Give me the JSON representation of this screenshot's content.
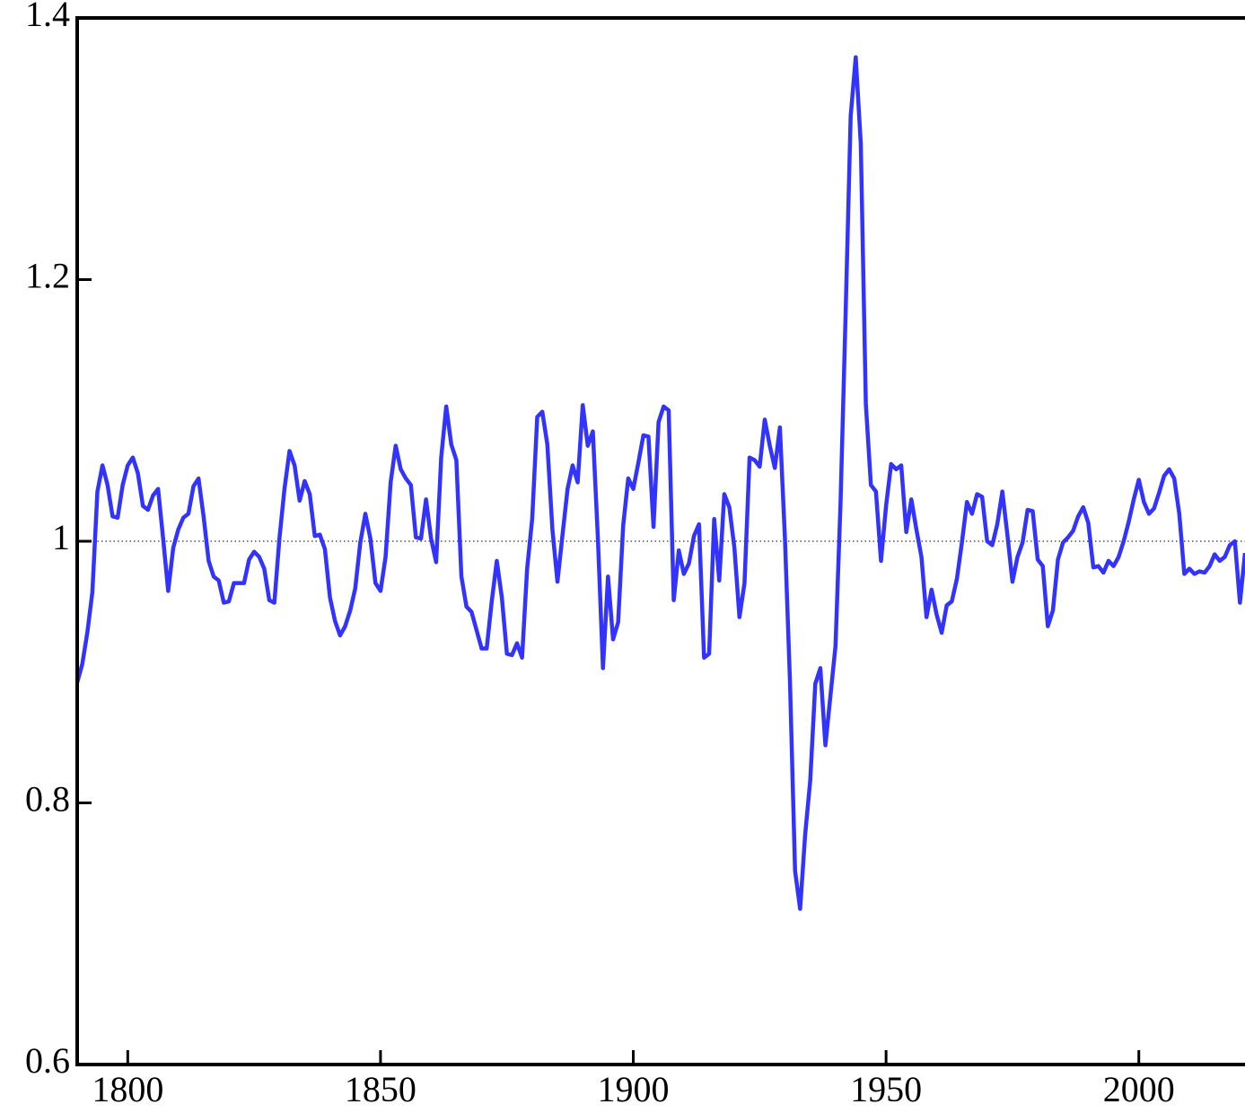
{
  "chart_data": {
    "type": "line",
    "x": [
      1790,
      1791,
      1792,
      1793,
      1794,
      1795,
      1796,
      1797,
      1798,
      1799,
      1800,
      1801,
      1802,
      1803,
      1804,
      1805,
      1806,
      1807,
      1808,
      1809,
      1810,
      1811,
      1812,
      1813,
      1814,
      1815,
      1816,
      1817,
      1818,
      1819,
      1820,
      1821,
      1822,
      1823,
      1824,
      1825,
      1826,
      1827,
      1828,
      1829,
      1830,
      1831,
      1832,
      1833,
      1834,
      1835,
      1836,
      1837,
      1838,
      1839,
      1840,
      1841,
      1842,
      1843,
      1844,
      1845,
      1846,
      1847,
      1848,
      1849,
      1850,
      1851,
      1852,
      1853,
      1854,
      1855,
      1856,
      1857,
      1858,
      1859,
      1860,
      1861,
      1862,
      1863,
      1864,
      1865,
      1866,
      1867,
      1868,
      1869,
      1870,
      1871,
      1872,
      1873,
      1874,
      1875,
      1876,
      1877,
      1878,
      1879,
      1880,
      1881,
      1882,
      1883,
      1884,
      1885,
      1886,
      1887,
      1888,
      1889,
      1890,
      1891,
      1892,
      1893,
      1894,
      1895,
      1896,
      1897,
      1898,
      1899,
      1900,
      1901,
      1902,
      1903,
      1904,
      1905,
      1906,
      1907,
      1908,
      1909,
      1910,
      1911,
      1912,
      1913,
      1914,
      1915,
      1916,
      1917,
      1918,
      1919,
      1920,
      1921,
      1922,
      1923,
      1924,
      1925,
      1926,
      1927,
      1928,
      1929,
      1930,
      1931,
      1932,
      1933,
      1934,
      1935,
      1936,
      1937,
      1938,
      1939,
      1940,
      1941,
      1942,
      1943,
      1944,
      1945,
      1946,
      1947,
      1948,
      1949,
      1950,
      1951,
      1952,
      1953,
      1954,
      1955,
      1956,
      1957,
      1958,
      1959,
      1960,
      1961,
      1962,
      1963,
      1964,
      1965,
      1966,
      1967,
      1968,
      1969,
      1970,
      1971,
      1972,
      1973,
      1974,
      1975,
      1976,
      1977,
      1978,
      1979,
      1980,
      1981,
      1982,
      1983,
      1984,
      1985,
      1986,
      1987,
      1988,
      1989,
      1990,
      1991,
      1992,
      1993,
      1994,
      1995,
      1996,
      1997,
      1998,
      1999,
      2000,
      2001,
      2002,
      2003,
      2004,
      2005,
      2006,
      2007,
      2008,
      2009,
      2010,
      2011,
      2012,
      2013,
      2014,
      2015,
      2016,
      2017,
      2018,
      2019,
      2020,
      2021
    ],
    "series": [
      {
        "color": "#3333ff",
        "values": [
          0.892,
          0.906,
          0.93,
          0.961,
          1.038,
          1.058,
          1.043,
          1.019,
          1.018,
          1.043,
          1.058,
          1.064,
          1.052,
          1.027,
          1.024,
          1.035,
          1.04,
          1.002,
          0.962,
          0.995,
          1.009,
          1.018,
          1.021,
          1.042,
          1.048,
          1.019,
          0.985,
          0.973,
          0.97,
          0.953,
          0.954,
          0.968,
          0.968,
          0.968,
          0.986,
          0.992,
          0.988,
          0.979,
          0.955,
          0.953,
          1.002,
          1.04,
          1.069,
          1.058,
          1.031,
          1.046,
          1.036,
          1.004,
          1.005,
          0.994,
          0.957,
          0.939,
          0.928,
          0.935,
          0.947,
          0.964,
          0.999,
          1.021,
          1.002,
          0.968,
          0.962,
          0.988,
          1.045,
          1.073,
          1.055,
          1.048,
          1.043,
          1.003,
          1.002,
          1.032,
          1.002,
          0.984,
          1.064,
          1.103,
          1.074,
          1.062,
          0.973,
          0.95,
          0.946,
          0.932,
          0.918,
          0.918,
          0.954,
          0.985,
          0.957,
          0.914,
          0.913,
          0.922,
          0.911,
          0.979,
          1.017,
          1.095,
          1.099,
          1.074,
          1.009,
          0.969,
          1.005,
          1.04,
          1.058,
          1.045,
          1.104,
          1.073,
          1.084,
          1.002,
          0.903,
          0.973,
          0.925,
          0.938,
          1.012,
          1.048,
          1.04,
          1.06,
          1.081,
          1.08,
          1.011,
          1.091,
          1.103,
          1.1,
          0.955,
          0.993,
          0.975,
          0.983,
          1.004,
          1.013,
          0.911,
          0.914,
          1.017,
          0.97,
          1.036,
          1.026,
          0.995,
          0.942,
          0.968,
          1.064,
          1.062,
          1.057,
          1.093,
          1.073,
          1.056,
          1.087,
          1.002,
          0.892,
          0.748,
          0.719,
          0.776,
          0.817,
          0.891,
          0.903,
          0.844,
          0.882,
          0.92,
          1.03,
          1.174,
          1.325,
          1.37,
          1.304,
          1.105,
          1.043,
          1.038,
          0.985,
          1.027,
          1.059,
          1.055,
          1.058,
          1.007,
          1.032,
          1.009,
          0.988,
          0.942,
          0.963,
          0.944,
          0.93,
          0.951,
          0.954,
          0.971,
          0.999,
          1.03,
          1.021,
          1.036,
          1.034,
          1.0,
          0.997,
          1.013,
          1.038,
          1.005,
          0.969,
          0.988,
          0.999,
          1.024,
          1.023,
          0.986,
          0.981,
          0.935,
          0.947,
          0.986,
          0.999,
          1.003,
          1.008,
          1.019,
          1.026,
          1.014,
          0.98,
          0.981,
          0.976,
          0.985,
          0.981,
          0.988,
          1.0,
          1.015,
          1.032,
          1.047,
          1.03,
          1.021,
          1.025,
          1.037,
          1.05,
          1.055,
          1.048,
          1.021,
          0.975,
          0.979,
          0.975,
          0.977,
          0.976,
          0.981,
          0.99,
          0.985,
          0.988,
          0.997,
          1.0,
          0.953,
          0.991
        ]
      }
    ],
    "xlim": [
      1790,
      2021
    ],
    "xticks": [
      1800,
      1850,
      1900,
      1950,
      2000
    ],
    "ylim": [
      0.6,
      1.4
    ],
    "yticks": [
      0.6,
      0.8,
      1,
      1.2,
      1.4
    ],
    "reference_line": 1
  }
}
